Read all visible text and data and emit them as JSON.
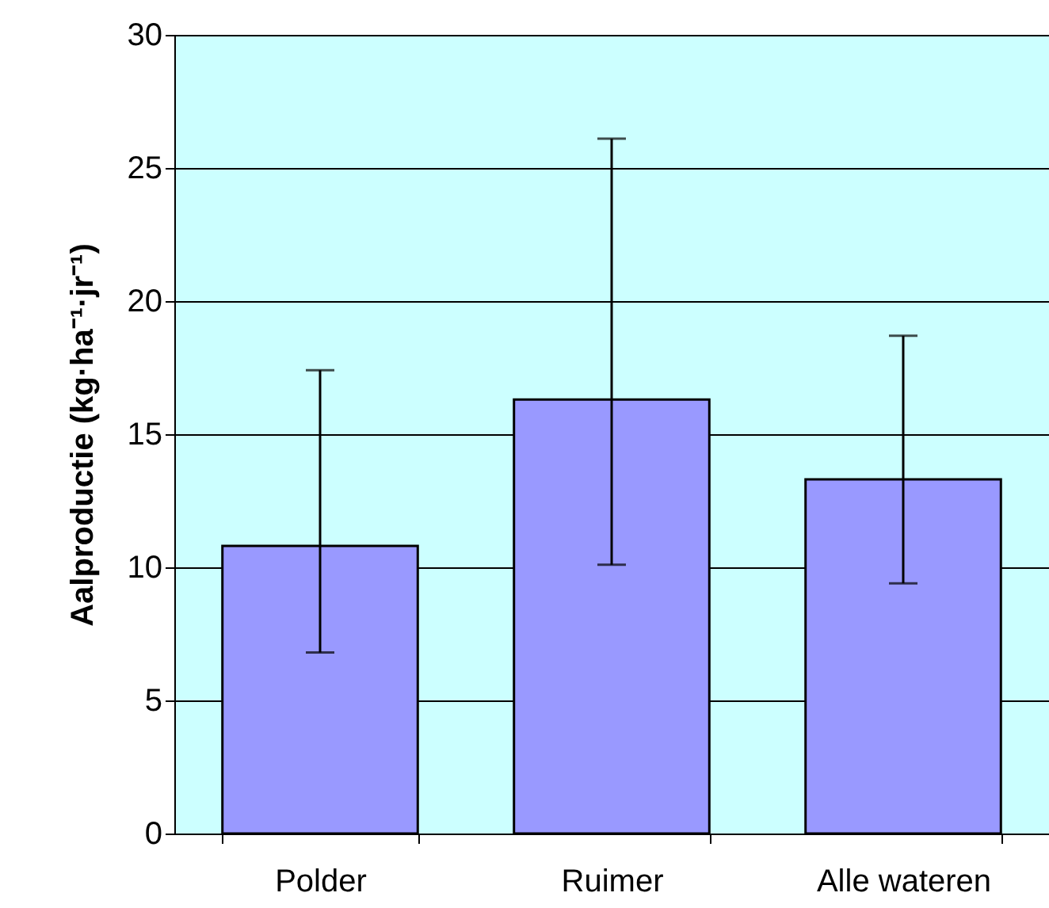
{
  "chart_data": {
    "type": "bar",
    "ylabel": "Aalproductie (kg·ha⁻¹·jr⁻¹)",
    "categories": [
      "Polder",
      "Ruimer",
      "Alle wateren"
    ],
    "values": [
      10.8,
      16.3,
      13.3
    ],
    "errors": [
      [
        6.8,
        17.4
      ],
      [
        10.1,
        26.1
      ],
      [
        9.4,
        18.7
      ]
    ],
    "color": "#9999ff",
    "ylim": [
      0,
      30
    ],
    "yticks": [
      0,
      5,
      10,
      15,
      20,
      25,
      30
    ],
    "grid": "y"
  }
}
